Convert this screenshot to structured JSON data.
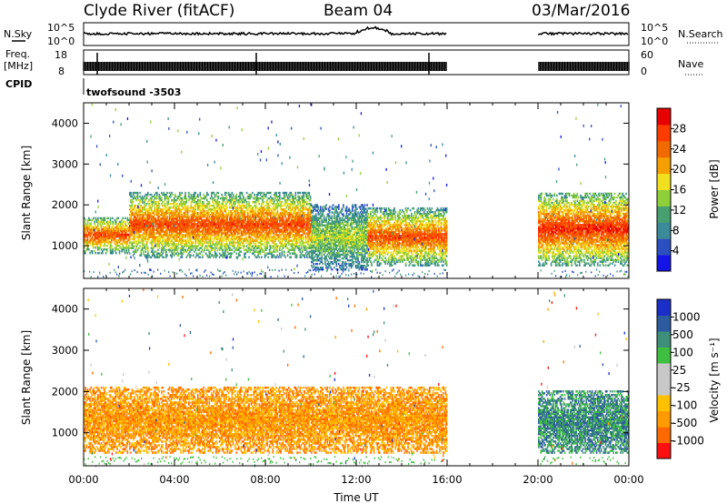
{
  "header": {
    "station": "Clyde River (fitACF)",
    "beam": "Beam 04",
    "date": "03/Mar/2016"
  },
  "strip_labels": {
    "nsky": "N.Sky",
    "nsearch": "N.Search",
    "freq_top": "Freq.",
    "freq_unit": "[MHz]",
    "nave": "Nave",
    "cpid": "CPID",
    "program": "twofsound -3503",
    "noise_left_ticks": [
      "10^5",
      "10^0"
    ],
    "noise_right_ticks": [
      "10^5",
      "10^0"
    ],
    "freq_left_ticks": [
      "18",
      "8"
    ],
    "freq_right_ticks": [
      "60",
      "0"
    ]
  },
  "colors": {
    "power": [
      "#1414e6",
      "#2d50c0",
      "#3a8a9a",
      "#46a070",
      "#8fcf3a",
      "#f0e020",
      "#f5a000",
      "#f06a00",
      "#ff3c00",
      "#e60000"
    ],
    "velocity": [
      "#ff1010",
      "#ff6a00",
      "#ff9a00",
      "#ffc000",
      "#c8c8c8",
      "#c8c8c8",
      "#3fbf3f",
      "#3d8f7a",
      "#2e5aa0",
      "#1a2fc8"
    ]
  },
  "chart_data": [
    {
      "type": "heatmap",
      "name": "Power",
      "xlabel": "",
      "ylabel": "Slant Range [km]",
      "xlim": [
        "00:00",
        "24:00"
      ],
      "ylim": [
        200,
        4500
      ],
      "y_ticks": [
        1000,
        2000,
        3000,
        4000
      ],
      "colorbar": {
        "label": "Power [dB]",
        "range": [
          0,
          32
        ],
        "ticks": [
          4,
          8,
          12,
          16,
          20,
          24,
          28
        ]
      },
      "data_gaps_UT": [
        [
          "16:00",
          "20:00"
        ]
      ],
      "echo_bands": [
        {
          "start": "00:00",
          "end": "02:00",
          "range_km": [
            800,
            1700
          ],
          "peak_db": 28
        },
        {
          "start": "02:00",
          "end": "10:00",
          "range_km": [
            700,
            2300
          ],
          "peak_db": 28
        },
        {
          "start": "10:00",
          "end": "12:30",
          "range_km": [
            400,
            2000
          ],
          "peak_db": 16
        },
        {
          "start": "12:30",
          "end": "16:00",
          "range_km": [
            500,
            1900
          ],
          "peak_db": 28
        },
        {
          "start": "20:00",
          "end": "24:00",
          "range_km": [
            500,
            2300
          ],
          "peak_db": 30
        }
      ]
    },
    {
      "type": "heatmap",
      "name": "Velocity",
      "xlabel": "Time UT",
      "ylabel": "Slant Range [km]",
      "xlim": [
        "00:00",
        "24:00"
      ],
      "ylim": [
        200,
        4500
      ],
      "x_ticks": [
        "00:00",
        "04:00",
        "08:00",
        "12:00",
        "16:00",
        "20:00",
        "00:00"
      ],
      "y_ticks": [
        1000,
        2000,
        3000,
        4000
      ],
      "colorbar": {
        "label": "Velocity [m s⁻¹]",
        "ticks": [
          -1000,
          -500,
          -100,
          -25,
          25,
          100,
          500,
          1000
        ]
      },
      "data_gaps_UT": [
        [
          "16:00",
          "20:00"
        ]
      ],
      "echo_bands": [
        {
          "start": "00:00",
          "end": "16:00",
          "range_km": [
            500,
            2100
          ],
          "dominant_velocity_ms": -100
        },
        {
          "start": "20:00",
          "end": "24:00",
          "range_km": [
            500,
            2000
          ],
          "dominant_velocity_ms": 500
        }
      ]
    }
  ]
}
